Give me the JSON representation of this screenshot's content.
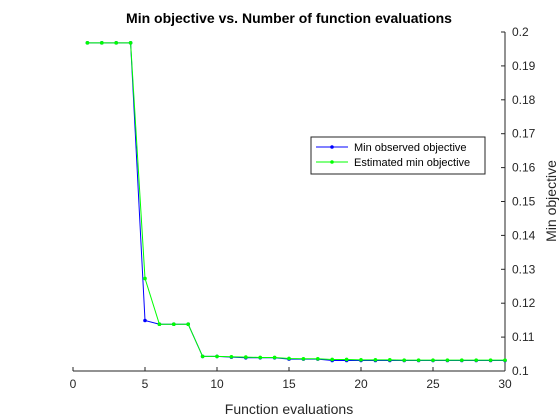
{
  "chart_data": {
    "type": "line",
    "title": "Min objective vs. Number of function evaluations",
    "xlabel": "Function evaluations",
    "ylabel": "Min objective",
    "xlim": [
      0,
      30
    ],
    "ylim": [
      0.1,
      0.2
    ],
    "x_ticks": [
      0,
      5,
      10,
      15,
      20,
      25,
      30
    ],
    "y_ticks": [
      0.1,
      0.11,
      0.12,
      0.13,
      0.14,
      0.15,
      0.16,
      0.17,
      0.18,
      0.19,
      0.2
    ],
    "y_axis_location": "right",
    "grid": false,
    "legend_location": "right",
    "x": [
      1,
      2,
      3,
      4,
      5,
      6,
      7,
      8,
      9,
      10,
      11,
      12,
      13,
      14,
      15,
      16,
      17,
      18,
      19,
      20,
      21,
      22,
      23,
      24,
      25,
      26,
      27,
      28,
      29,
      30
    ],
    "series": [
      {
        "name": "Min observed objective",
        "color": "#0000ff",
        "values": [
          0.1968,
          0.1968,
          0.1968,
          0.1968,
          0.1149,
          0.1138,
          0.1138,
          0.1138,
          0.1043,
          0.1043,
          0.1041,
          0.1039,
          0.1039,
          0.1039,
          0.1035,
          0.1035,
          0.1035,
          0.1031,
          0.1031,
          0.1031,
          0.1031,
          0.1031,
          0.1031,
          0.1031,
          0.1031,
          0.1031,
          0.1031,
          0.1031,
          0.1031,
          0.1031
        ]
      },
      {
        "name": "Estimated min objective",
        "color": "#00ff00",
        "values": [
          0.1968,
          0.1968,
          0.1968,
          0.1968,
          0.1273,
          0.1138,
          0.1138,
          0.1138,
          0.1043,
          0.1043,
          0.1042,
          0.1041,
          0.104,
          0.104,
          0.1037,
          0.1036,
          0.1036,
          0.1034,
          0.1034,
          0.1033,
          0.1033,
          0.1033,
          0.1032,
          0.1032,
          0.1032,
          0.1032,
          0.1032,
          0.1032,
          0.1032,
          0.1032
        ]
      }
    ]
  }
}
